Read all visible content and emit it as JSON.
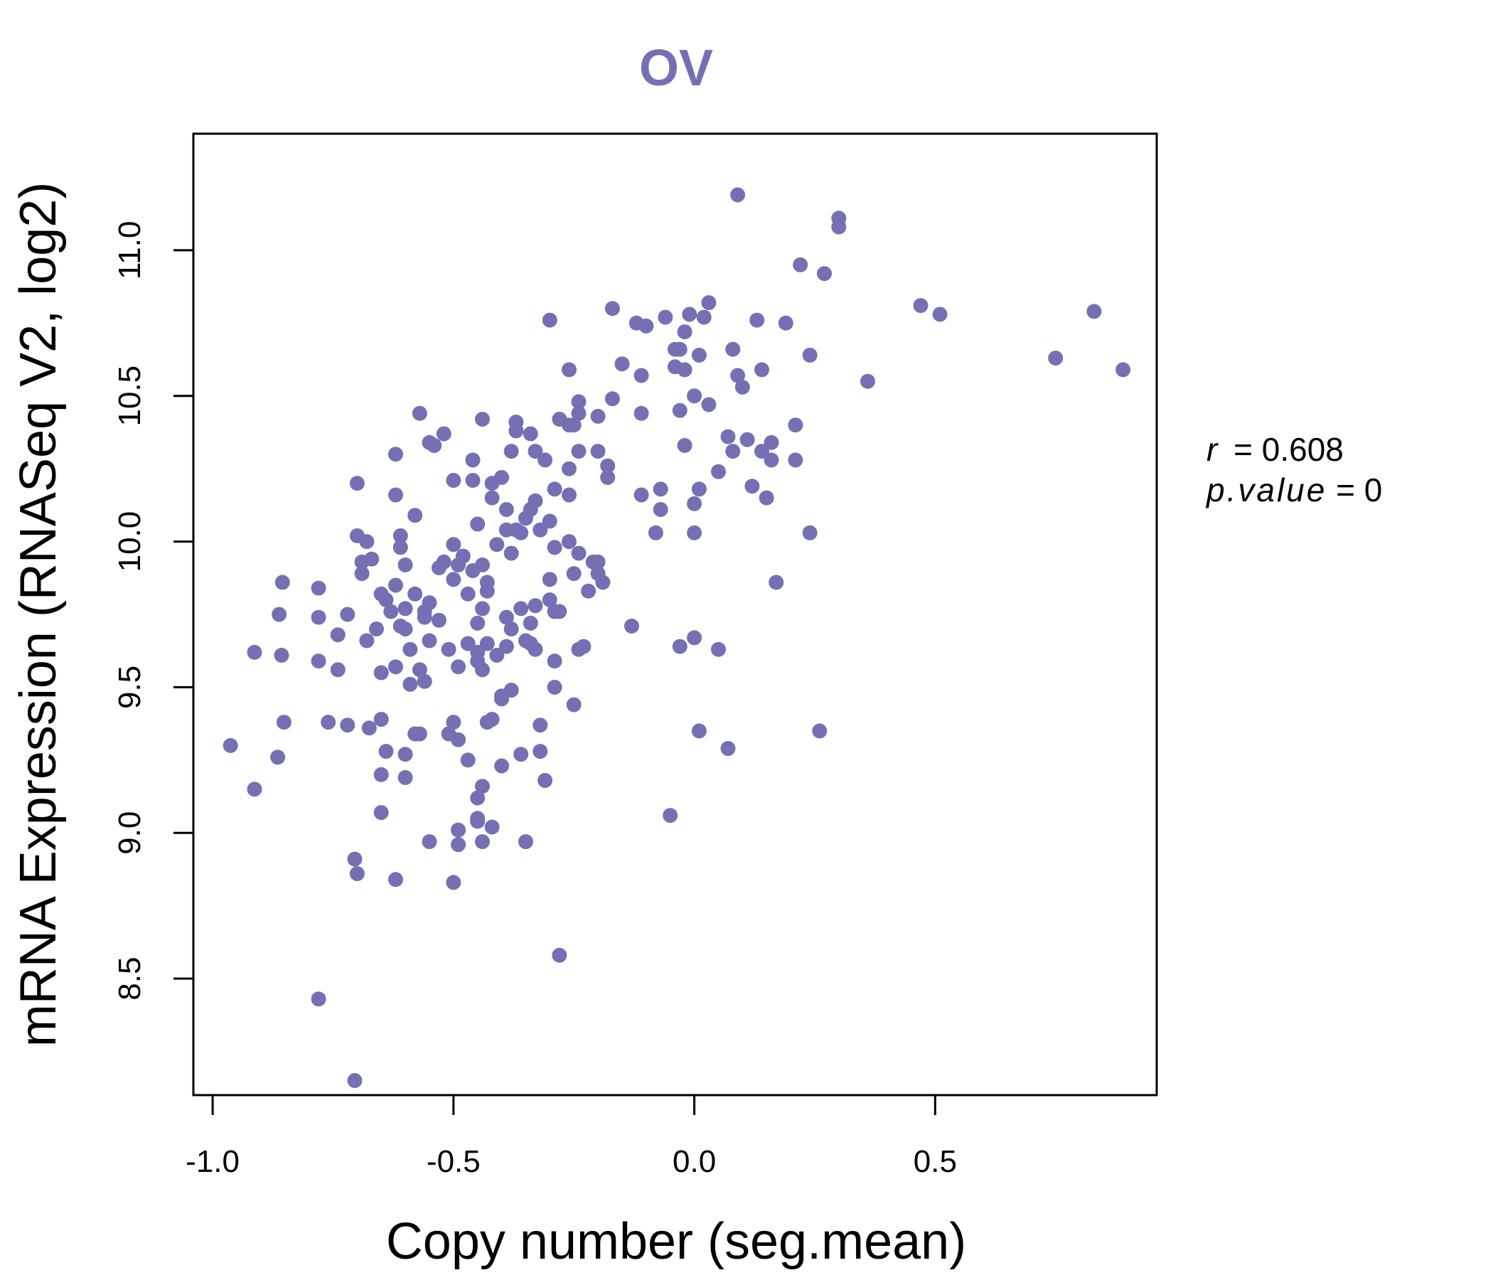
{
  "chart_data": {
    "type": "scatter",
    "title": "OV",
    "xlabel": "Copy number (seg.mean)",
    "ylabel": "mRNA Expression (RNASeq V2, log2)",
    "xlim": [
      -1.04,
      0.96
    ],
    "ylim": [
      8.1,
      11.4
    ],
    "x_ticks": [
      "-1.0",
      "-0.5",
      "0.0",
      "0.5"
    ],
    "y_ticks": [
      "8.5",
      "9.0",
      "9.5",
      "10.0",
      "10.5",
      "11.0"
    ],
    "grid": false,
    "legend": "none",
    "annotation": {
      "r_label": "r",
      "r_value": "0.608",
      "p_label": "p.value",
      "p_value": "0"
    },
    "colors": {
      "title": "#7570B3",
      "points": "#7570B3",
      "axes": "#000000"
    },
    "points": [
      [
        -0.963,
        9.3
      ],
      [
        -0.913,
        9.62
      ],
      [
        -0.913,
        9.15
      ],
      [
        -0.865,
        9.26
      ],
      [
        -0.862,
        9.75
      ],
      [
        -0.857,
        9.61
      ],
      [
        -0.855,
        9.86
      ],
      [
        -0.852,
        9.38
      ],
      [
        -0.78,
        9.74
      ],
      [
        -0.78,
        9.59
      ],
      [
        -0.78,
        9.84
      ],
      [
        -0.78,
        8.43
      ],
      [
        -0.76,
        9.38
      ],
      [
        -0.74,
        9.56
      ],
      [
        -0.74,
        9.68
      ],
      [
        -0.72,
        9.37
      ],
      [
        -0.72,
        9.75
      ],
      [
        -0.705,
        8.91
      ],
      [
        -0.7,
        8.86
      ],
      [
        -0.705,
        8.15
      ],
      [
        -0.7,
        10.2
      ],
      [
        -0.7,
        10.02
      ],
      [
        -0.69,
        9.93
      ],
      [
        -0.69,
        9.89
      ],
      [
        -0.68,
        9.66
      ],
      [
        -0.68,
        10.0
      ],
      [
        -0.675,
        9.36
      ],
      [
        -0.67,
        9.94
      ],
      [
        -0.66,
        9.7
      ],
      [
        -0.65,
        9.55
      ],
      [
        -0.65,
        9.39
      ],
      [
        -0.65,
        9.82
      ],
      [
        -0.65,
        9.2
      ],
      [
        -0.65,
        9.07
      ],
      [
        -0.64,
        9.8
      ],
      [
        -0.64,
        9.28
      ],
      [
        -0.63,
        9.76
      ],
      [
        -0.62,
        9.85
      ],
      [
        -0.62,
        9.57
      ],
      [
        -0.62,
        10.3
      ],
      [
        -0.62,
        10.16
      ],
      [
        -0.62,
        8.84
      ],
      [
        -0.61,
        9.71
      ],
      [
        -0.61,
        9.98
      ],
      [
        -0.61,
        10.02
      ],
      [
        -0.6,
        9.77
      ],
      [
        -0.6,
        9.27
      ],
      [
        -0.6,
        9.19
      ],
      [
        -0.6,
        9.92
      ],
      [
        -0.6,
        9.7
      ],
      [
        -0.59,
        9.51
      ],
      [
        -0.59,
        9.63
      ],
      [
        -0.58,
        9.34
      ],
      [
        -0.58,
        10.09
      ],
      [
        -0.58,
        9.82
      ],
      [
        -0.57,
        10.44
      ],
      [
        -0.57,
        9.56
      ],
      [
        -0.57,
        9.34
      ],
      [
        -0.56,
        9.76
      ],
      [
        -0.56,
        9.74
      ],
      [
        -0.56,
        9.52
      ],
      [
        -0.55,
        9.79
      ],
      [
        -0.55,
        9.66
      ],
      [
        -0.55,
        8.97
      ],
      [
        -0.55,
        10.34
      ],
      [
        -0.54,
        10.33
      ],
      [
        -0.53,
        9.91
      ],
      [
        -0.53,
        9.73
      ],
      [
        -0.52,
        10.37
      ],
      [
        -0.52,
        9.93
      ],
      [
        -0.51,
        9.34
      ],
      [
        -0.51,
        9.63
      ],
      [
        -0.5,
        10.21
      ],
      [
        -0.5,
        9.87
      ],
      [
        -0.5,
        9.99
      ],
      [
        -0.5,
        9.38
      ],
      [
        -0.5,
        8.83
      ],
      [
        -0.49,
        9.92
      ],
      [
        -0.49,
        9.57
      ],
      [
        -0.49,
        9.32
      ],
      [
        -0.49,
        9.01
      ],
      [
        -0.49,
        8.96
      ],
      [
        -0.48,
        9.95
      ],
      [
        -0.47,
        9.65
      ],
      [
        -0.47,
        9.25
      ],
      [
        -0.47,
        9.82
      ],
      [
        -0.46,
        9.9
      ],
      [
        -0.46,
        10.28
      ],
      [
        -0.46,
        10.21
      ],
      [
        -0.45,
        10.06
      ],
      [
        -0.45,
        9.72
      ],
      [
        -0.45,
        9.62
      ],
      [
        -0.45,
        9.05
      ],
      [
        -0.45,
        9.12
      ],
      [
        -0.45,
        9.04
      ],
      [
        -0.45,
        9.59
      ],
      [
        -0.44,
        9.92
      ],
      [
        -0.44,
        9.56
      ],
      [
        -0.44,
        9.77
      ],
      [
        -0.44,
        9.16
      ],
      [
        -0.44,
        8.97
      ],
      [
        -0.44,
        10.42
      ],
      [
        -0.43,
        9.65
      ],
      [
        -0.43,
        9.38
      ],
      [
        -0.43,
        9.86
      ],
      [
        -0.43,
        9.83
      ],
      [
        -0.42,
        10.15
      ],
      [
        -0.42,
        9.39
      ],
      [
        -0.42,
        9.02
      ],
      [
        -0.42,
        10.2
      ],
      [
        -0.41,
        9.99
      ],
      [
        -0.41,
        9.61
      ],
      [
        -0.4,
        10.22
      ],
      [
        -0.4,
        9.47
      ],
      [
        -0.4,
        9.46
      ],
      [
        -0.4,
        9.23
      ],
      [
        -0.39,
        10.11
      ],
      [
        -0.39,
        10.04
      ],
      [
        -0.39,
        9.74
      ],
      [
        -0.39,
        9.64
      ],
      [
        -0.38,
        10.31
      ],
      [
        -0.38,
        9.96
      ],
      [
        -0.38,
        9.7
      ],
      [
        -0.38,
        9.49
      ],
      [
        -0.37,
        10.38
      ],
      [
        -0.37,
        10.41
      ],
      [
        -0.37,
        10.04
      ],
      [
        -0.36,
        9.77
      ],
      [
        -0.36,
        9.27
      ],
      [
        -0.36,
        10.03
      ],
      [
        -0.35,
        10.08
      ],
      [
        -0.35,
        9.66
      ],
      [
        -0.35,
        8.97
      ],
      [
        -0.34,
        10.11
      ],
      [
        -0.34,
        10.37
      ],
      [
        -0.34,
        9.65
      ],
      [
        -0.34,
        9.72
      ],
      [
        -0.33,
        10.31
      ],
      [
        -0.33,
        10.14
      ],
      [
        -0.33,
        9.78
      ],
      [
        -0.33,
        9.63
      ],
      [
        -0.32,
        10.04
      ],
      [
        -0.32,
        9.37
      ],
      [
        -0.32,
        9.28
      ],
      [
        -0.31,
        10.28
      ],
      [
        -0.31,
        9.18
      ],
      [
        -0.3,
        10.76
      ],
      [
        -0.3,
        10.07
      ],
      [
        -0.3,
        9.87
      ],
      [
        -0.3,
        9.8
      ],
      [
        -0.29,
        10.18
      ],
      [
        -0.29,
        9.98
      ],
      [
        -0.29,
        9.76
      ],
      [
        -0.29,
        9.59
      ],
      [
        -0.29,
        9.5
      ],
      [
        -0.28,
        10.42
      ],
      [
        -0.28,
        9.76
      ],
      [
        -0.28,
        8.58
      ],
      [
        -0.26,
        10.59
      ],
      [
        -0.26,
        10.25
      ],
      [
        -0.26,
        10.16
      ],
      [
        -0.26,
        10.0
      ],
      [
        -0.26,
        10.4
      ],
      [
        -0.25,
        10.4
      ],
      [
        -0.25,
        9.89
      ],
      [
        -0.25,
        9.44
      ],
      [
        -0.24,
        10.48
      ],
      [
        -0.24,
        10.44
      ],
      [
        -0.24,
        10.31
      ],
      [
        -0.24,
        9.96
      ],
      [
        -0.24,
        9.63
      ],
      [
        -0.23,
        9.64
      ],
      [
        -0.22,
        9.83
      ],
      [
        -0.21,
        9.93
      ],
      [
        -0.2,
        10.43
      ],
      [
        -0.2,
        10.31
      ],
      [
        -0.2,
        9.93
      ],
      [
        -0.2,
        9.89
      ],
      [
        -0.19,
        9.86
      ],
      [
        -0.18,
        10.26
      ],
      [
        -0.18,
        10.22
      ],
      [
        -0.17,
        10.8
      ],
      [
        -0.17,
        10.49
      ],
      [
        -0.15,
        10.61
      ],
      [
        -0.13,
        9.71
      ],
      [
        -0.12,
        10.75
      ],
      [
        -0.11,
        10.57
      ],
      [
        -0.11,
        10.44
      ],
      [
        -0.11,
        10.16
      ],
      [
        -0.1,
        10.74
      ],
      [
        -0.08,
        10.03
      ],
      [
        -0.07,
        10.18
      ],
      [
        -0.07,
        10.11
      ],
      [
        -0.06,
        10.77
      ],
      [
        -0.05,
        9.06
      ],
      [
        -0.04,
        10.6
      ],
      [
        -0.04,
        10.66
      ],
      [
        -0.03,
        10.66
      ],
      [
        -0.03,
        10.45
      ],
      [
        -0.03,
        9.64
      ],
      [
        -0.02,
        10.72
      ],
      [
        -0.02,
        10.59
      ],
      [
        -0.02,
        10.33
      ],
      [
        -0.01,
        10.78
      ],
      [
        0.0,
        10.5
      ],
      [
        0.0,
        10.13
      ],
      [
        0.0,
        10.03
      ],
      [
        0.0,
        9.67
      ],
      [
        0.01,
        10.64
      ],
      [
        0.01,
        10.18
      ],
      [
        0.01,
        9.35
      ],
      [
        0.02,
        10.77
      ],
      [
        0.03,
        10.82
      ],
      [
        0.03,
        10.47
      ],
      [
        0.05,
        10.24
      ],
      [
        0.05,
        9.63
      ],
      [
        0.07,
        10.36
      ],
      [
        0.07,
        9.29
      ],
      [
        0.08,
        10.66
      ],
      [
        0.08,
        10.31
      ],
      [
        0.09,
        10.57
      ],
      [
        0.09,
        11.19
      ],
      [
        0.1,
        10.53
      ],
      [
        0.11,
        10.35
      ],
      [
        0.12,
        10.19
      ],
      [
        0.13,
        10.76
      ],
      [
        0.14,
        10.59
      ],
      [
        0.14,
        10.31
      ],
      [
        0.15,
        10.15
      ],
      [
        0.16,
        10.34
      ],
      [
        0.16,
        10.28
      ],
      [
        0.17,
        9.86
      ],
      [
        0.19,
        10.75
      ],
      [
        0.21,
        10.4
      ],
      [
        0.21,
        10.28
      ],
      [
        0.22,
        10.95
      ],
      [
        0.24,
        10.64
      ],
      [
        0.24,
        10.03
      ],
      [
        0.26,
        9.35
      ],
      [
        0.27,
        10.92
      ],
      [
        0.3,
        11.08
      ],
      [
        0.3,
        11.11
      ],
      [
        0.36,
        10.55
      ],
      [
        0.47,
        10.81
      ],
      [
        0.51,
        10.78
      ],
      [
        0.75,
        10.63
      ],
      [
        0.83,
        10.79
      ],
      [
        0.89,
        10.59
      ]
    ]
  }
}
